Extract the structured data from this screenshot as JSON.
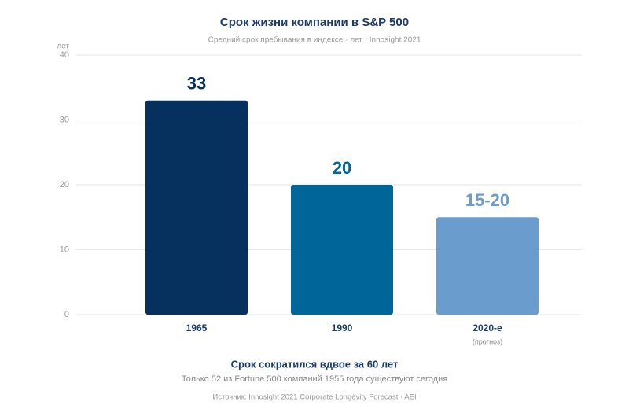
{
  "chart_data": {
    "type": "bar",
    "title": "Срок жизни компании в S&P 500",
    "subtitle": "Средний срок пребывания в индексе · лет · Innosight 2021",
    "y_label": "лет",
    "categories": [
      "1965",
      "1990",
      "2020-е"
    ],
    "category_notes": [
      null,
      null,
      "(прогноз)"
    ],
    "values": [
      33,
      20,
      15
    ],
    "value_labels": [
      "33",
      "20",
      "15-20"
    ],
    "colors": [
      "#06315f",
      "#006699",
      "#6a9dcd"
    ],
    "ylim": [
      0,
      40
    ],
    "yticks": [
      0,
      10,
      20,
      30,
      40
    ],
    "grid": true,
    "headline": "Срок сократился вдвое за 60 лет",
    "note": "Только 52 из Fortune 500 компаний 1955 года существуют сегодня",
    "source": "Источник: Innosight 2021 Corporate Longevity Forecast · AEI"
  }
}
